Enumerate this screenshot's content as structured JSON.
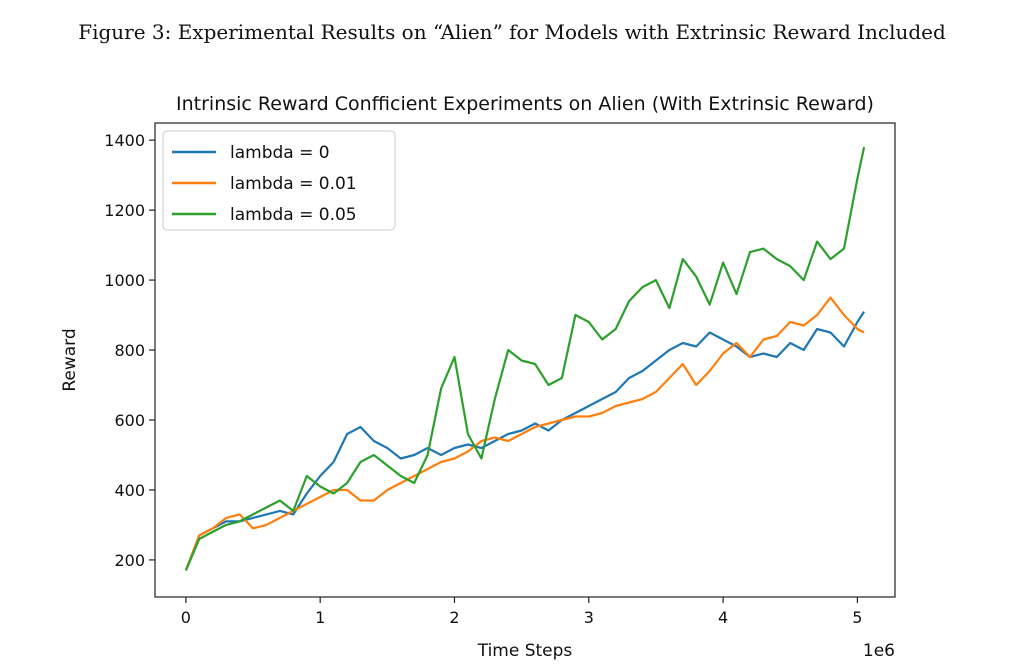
{
  "caption": "Figure 3: Experimental Results on “Alien” for Models with Extrinsic Reward Included",
  "chart_data": {
    "type": "line",
    "title": "Intrinsic Reward Confficient Experiments on Alien (With Extrinsic Reward)",
    "xlabel": "Time Steps",
    "ylabel": "Reward",
    "x_offset_label": "1e6",
    "xlim": [
      -0.23,
      5.28
    ],
    "ylim": [
      94,
      1449
    ],
    "xticks": [
      0,
      1,
      2,
      3,
      4,
      5
    ],
    "xtick_labels": [
      "0",
      "1",
      "2",
      "3",
      "4",
      "5"
    ],
    "yticks": [
      200,
      400,
      600,
      800,
      1000,
      1200,
      1400
    ],
    "ytick_labels": [
      "200",
      "400",
      "600",
      "800",
      "1000",
      "1200",
      "1400"
    ],
    "grid": false,
    "legend_position": "top-left",
    "x": [
      0,
      0.1,
      0.2,
      0.3,
      0.4,
      0.5,
      0.6,
      0.7,
      0.8,
      0.9,
      1.0,
      1.1,
      1.2,
      1.3,
      1.4,
      1.5,
      1.6,
      1.7,
      1.8,
      1.9,
      2.0,
      2.1,
      2.2,
      2.3,
      2.4,
      2.5,
      2.6,
      2.7,
      2.8,
      2.9,
      3.0,
      3.1,
      3.2,
      3.3,
      3.4,
      3.5,
      3.6,
      3.7,
      3.8,
      3.9,
      4.0,
      4.1,
      4.2,
      4.3,
      4.4,
      4.5,
      4.6,
      4.7,
      4.8,
      4.9,
      5.0,
      5.05
    ],
    "series": [
      {
        "name": "lambda = 0",
        "color": "#1f77b4",
        "values": [
          170,
          270,
          290,
          310,
          310,
          320,
          330,
          340,
          330,
          390,
          440,
          480,
          560,
          580,
          540,
          520,
          490,
          500,
          520,
          500,
          520,
          530,
          520,
          540,
          560,
          570,
          590,
          570,
          600,
          620,
          640,
          660,
          680,
          720,
          740,
          770,
          800,
          820,
          810,
          850,
          830,
          810,
          780,
          790,
          780,
          820,
          800,
          860,
          850,
          810,
          880,
          910
        ]
      },
      {
        "name": "lambda = 0.01",
        "color": "#ff7f0e",
        "values": [
          170,
          270,
          290,
          320,
          330,
          290,
          300,
          320,
          340,
          360,
          380,
          400,
          400,
          370,
          370,
          400,
          420,
          440,
          460,
          480,
          490,
          510,
          540,
          550,
          540,
          560,
          580,
          590,
          600,
          610,
          610,
          620,
          640,
          650,
          660,
          680,
          720,
          760,
          700,
          740,
          790,
          820,
          780,
          830,
          840,
          880,
          870,
          900,
          950,
          900,
          860,
          850
        ]
      },
      {
        "name": "lambda = 0.05",
        "color": "#2ca02c",
        "values": [
          170,
          260,
          280,
          300,
          310,
          330,
          350,
          370,
          340,
          440,
          410,
          390,
          420,
          480,
          500,
          470,
          440,
          420,
          500,
          690,
          780,
          560,
          490,
          660,
          800,
          770,
          760,
          700,
          720,
          900,
          880,
          830,
          860,
          940,
          980,
          1000,
          920,
          1060,
          1010,
          930,
          1050,
          960,
          1080,
          1090,
          1060,
          1040,
          1000,
          1110,
          1060,
          1090,
          1290,
          1380
        ]
      }
    ]
  }
}
